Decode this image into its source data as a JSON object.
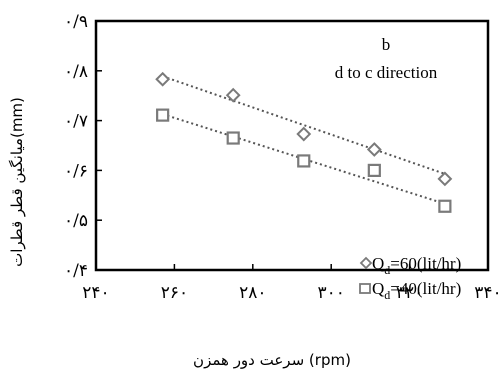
{
  "chart_data": {
    "type": "scatter",
    "panel_label": "b",
    "annotation": "d to c direction",
    "xlabel": "سرعت دور همزن (rpm)",
    "ylabel": "میانگین قطر قطرات(mm)",
    "xlim": [
      240,
      340
    ],
    "ylim": [
      0.4,
      0.9
    ],
    "x_ticks": [
      240,
      260,
      280,
      300,
      320,
      340
    ],
    "x_tick_labels": [
      "۲۴۰",
      "۲۶۰",
      "۲۸۰",
      "۳۰۰",
      "۳۲۰",
      "۳۴۰"
    ],
    "y_ticks": [
      0.4,
      0.5,
      0.6,
      0.7,
      0.8,
      0.9
    ],
    "y_tick_labels": [
      "۰/۴",
      "۰/۵",
      "۰/۶",
      "۰/۷",
      "۰/۸",
      "۰/۹"
    ],
    "grid": false,
    "legend_position": "bottom-right",
    "series": [
      {
        "name": "Q_d=60(lit/hr)",
        "legend_main": "Q",
        "legend_sub": "d",
        "legend_rest": "=60(lit/hr)",
        "marker": "diamond",
        "color": "#7a7a7a",
        "x": [
          257,
          275,
          293,
          311,
          329
        ],
        "y": [
          0.783,
          0.751,
          0.673,
          0.642,
          0.583
        ],
        "trend": [
          [
            257,
            0.789
          ],
          [
            329,
            0.593
          ]
        ]
      },
      {
        "name": "Q_d=40(lit/hr)",
        "legend_main": "Q",
        "legend_sub": "d",
        "legend_rest": "=40(lit/hr)",
        "marker": "square",
        "color": "#7a7a7a",
        "x": [
          257,
          275,
          293,
          311,
          329
        ],
        "y": [
          0.711,
          0.665,
          0.619,
          0.6,
          0.528
        ],
        "trend": [
          [
            257,
            0.713
          ],
          [
            329,
            0.533
          ]
        ]
      }
    ]
  }
}
